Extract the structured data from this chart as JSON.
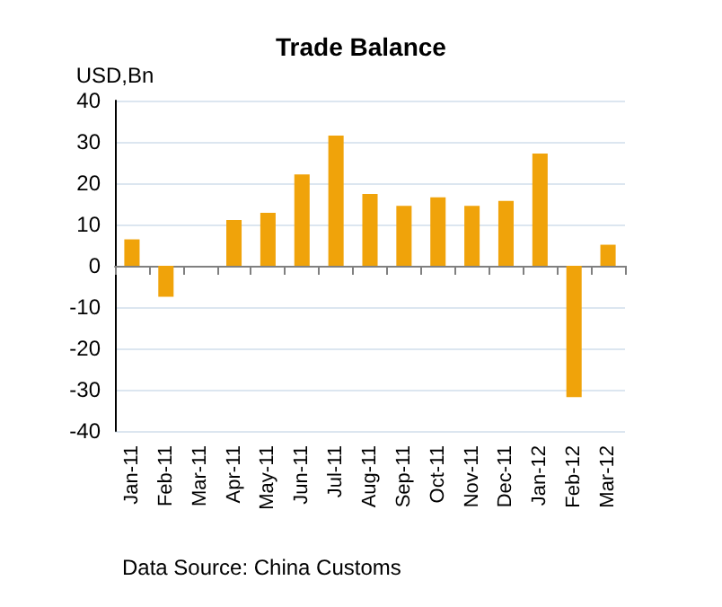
{
  "chart_data": {
    "type": "bar",
    "title": "Trade Balance",
    "ylabel": "USD,Bn",
    "categories": [
      "Jan-11",
      "Feb-11",
      "Mar-11",
      "Apr-11",
      "May-11",
      "Jun-11",
      "Jul-11",
      "Aug-11",
      "Sep-11",
      "Oct-11",
      "Nov-11",
      "Dec-11",
      "Jan-12",
      "Feb-12",
      "Mar-12"
    ],
    "values": [
      6.4,
      -7.5,
      0,
      11.1,
      12.8,
      22.1,
      31.5,
      17.4,
      14.5,
      16.6,
      14.5,
      15.7,
      27.2,
      -31.8,
      5.1
    ],
    "color": "#f0a30a",
    "ylim": [
      -40,
      40
    ],
    "yticks": [
      -40,
      -30,
      -20,
      -10,
      0,
      10,
      20,
      30,
      40
    ],
    "grid": "y",
    "annotations": [
      "Data Source: China Customs"
    ]
  }
}
